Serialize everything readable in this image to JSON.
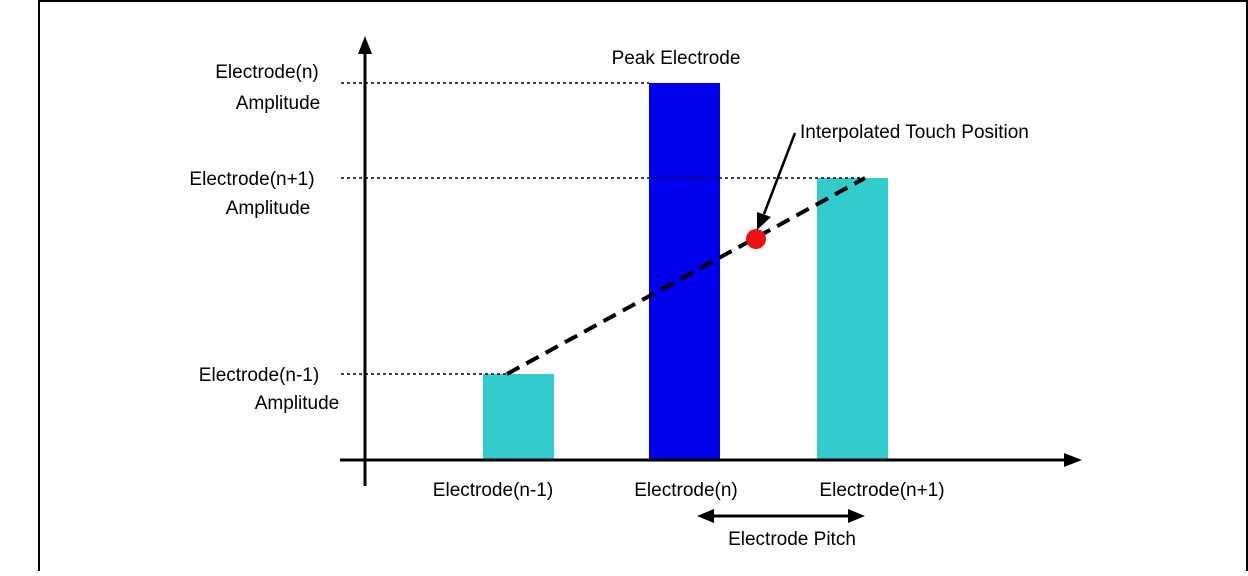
{
  "colors": {
    "background": "#ffffff",
    "frame": "#000000",
    "axis": "#000000",
    "peak_bar": "#0000ee",
    "neighbor_bar": "#33cccc",
    "touch_point": "#ee1111",
    "dashed": "#000000"
  },
  "labels": {
    "peak_electrode": "Peak Electrode",
    "interpolated_touch": "Interpolated Touch Position",
    "electrode_pitch": "Electrode Pitch"
  },
  "y_labels": [
    {
      "line1": "Electrode(n)",
      "line2": "Amplitude"
    },
    {
      "line1": "Electrode(n+1)",
      "line2": "Amplitude"
    },
    {
      "line1": "Electrode(n-1)",
      "line2": "Amplitude"
    }
  ],
  "electrodes": [
    {
      "label": "Electrode(n-1)",
      "role": "neighbor"
    },
    {
      "label": "Electrode(n)",
      "role": "peak"
    },
    {
      "label": "Electrode(n+1)",
      "role": "neighbor"
    }
  ]
}
